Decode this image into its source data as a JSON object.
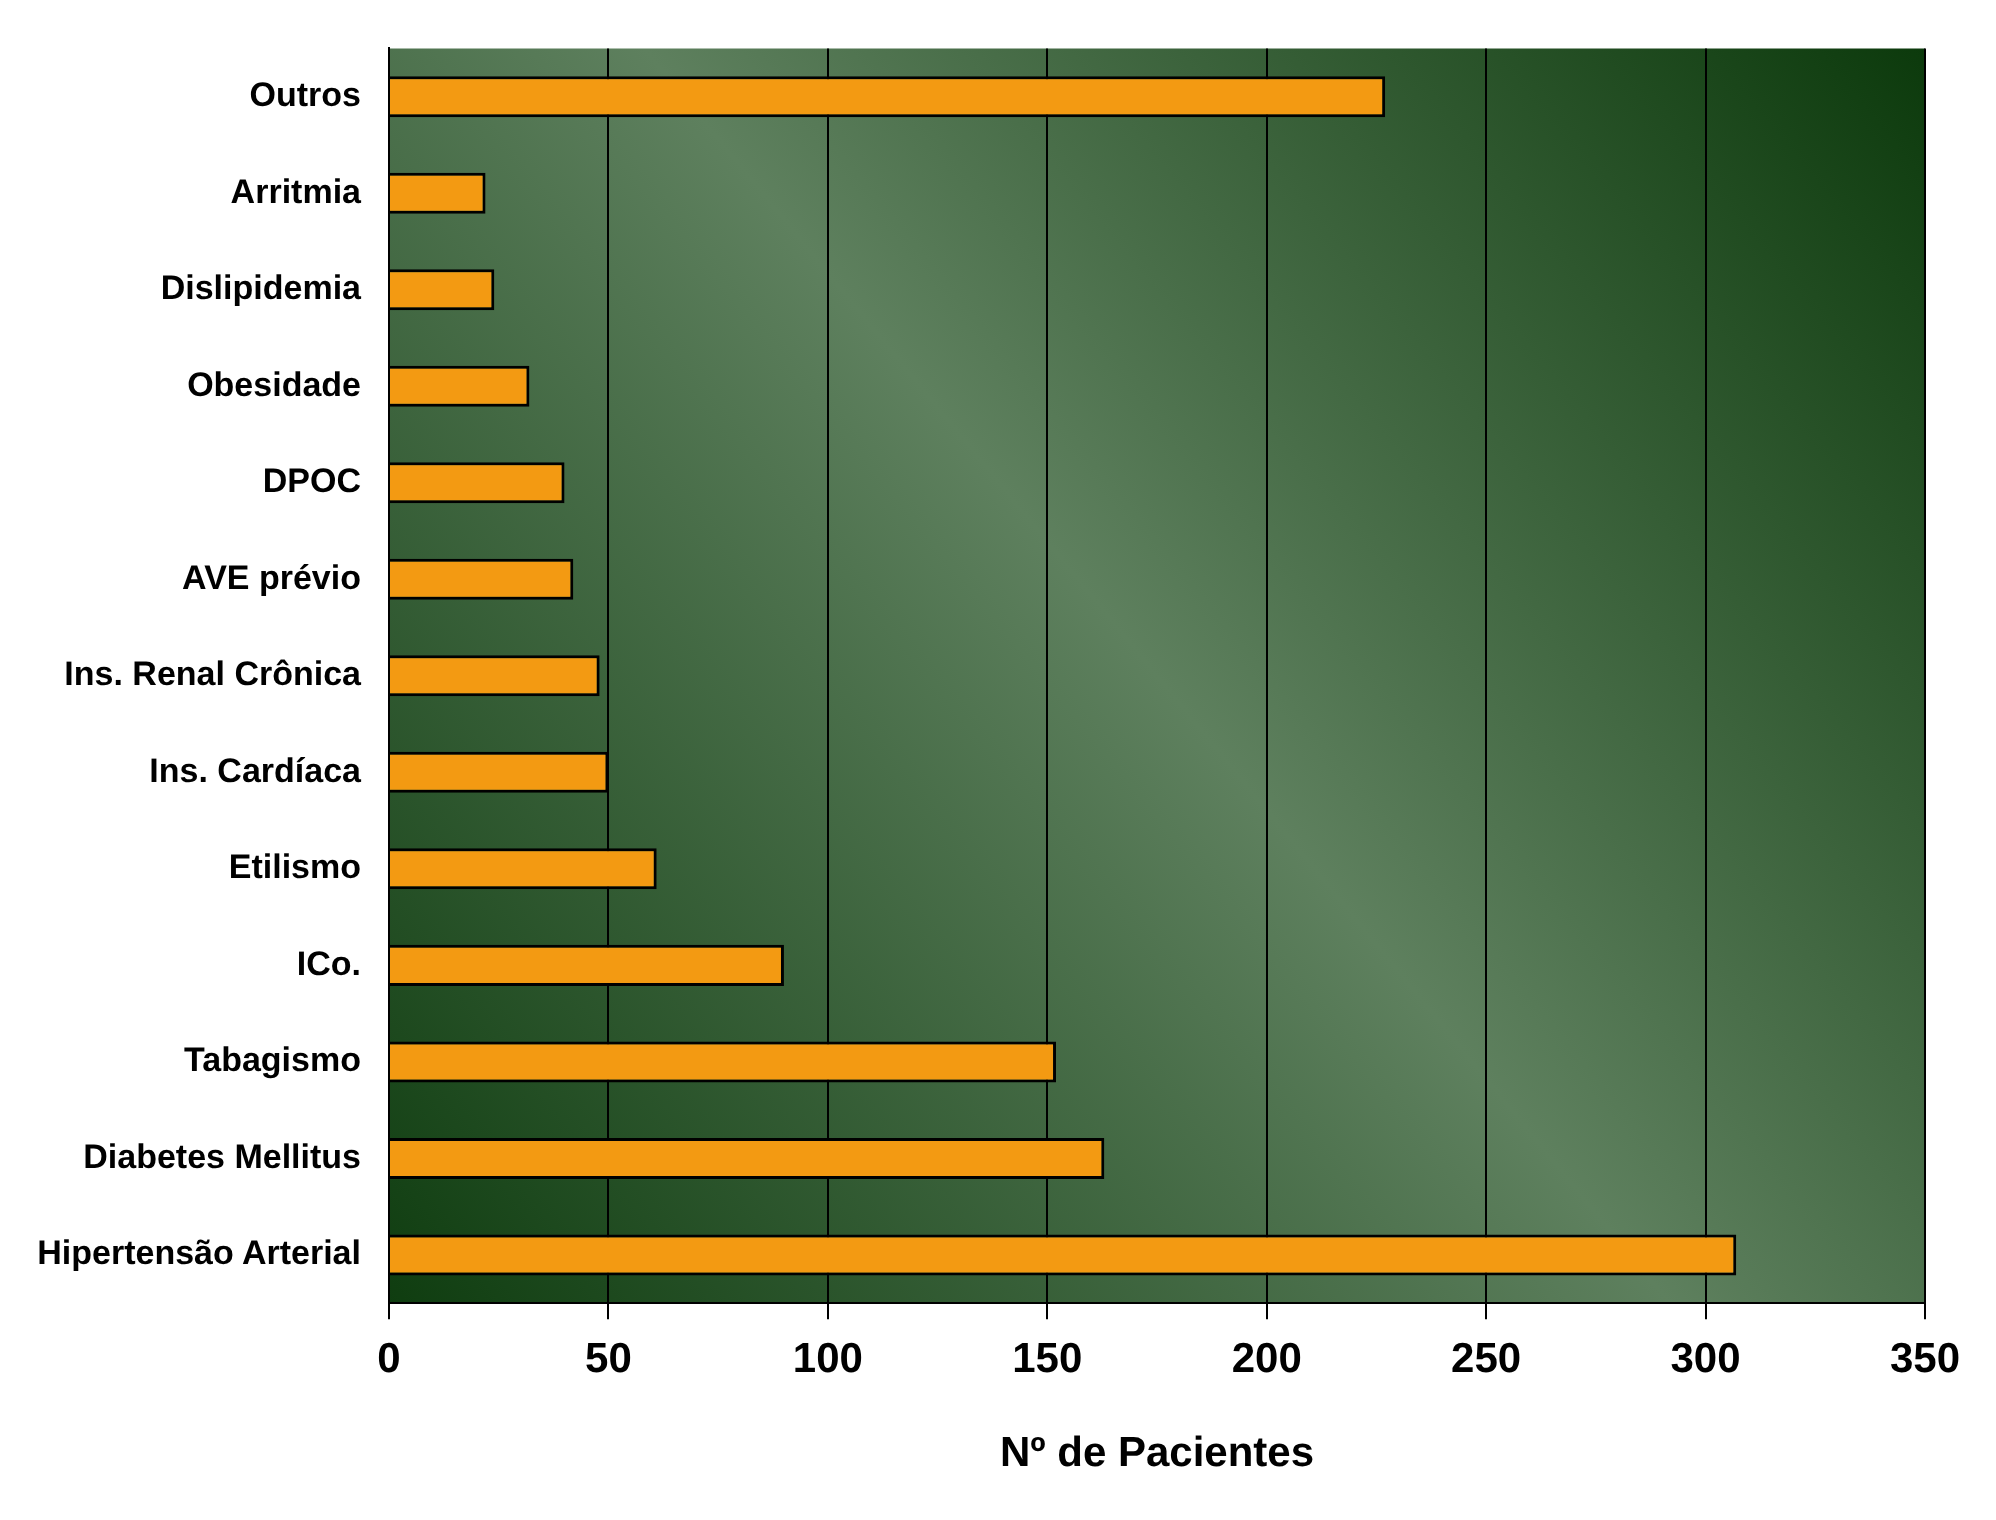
{
  "chart_data": {
    "type": "bar",
    "orientation": "horizontal",
    "xlabel": "Nº de Pacientes",
    "categories": [
      "Outros",
      "Arritmia",
      "Dislipidemia",
      "Obesidade",
      "DPOC",
      "AVE prévio",
      "Ins. Renal Crônica",
      "Ins. Cardíaca",
      "Etilismo",
      "ICo.",
      "Tabagismo",
      "Diabetes Mellitus",
      "Hipertensão Arterial"
    ],
    "values": [
      227,
      22,
      24,
      32,
      40,
      42,
      48,
      50,
      61,
      90,
      152,
      163,
      307
    ],
    "color": "#f39a12",
    "xlim": [
      0,
      350
    ],
    "xticks": [
      0,
      50,
      100,
      150,
      200,
      250,
      300,
      350
    ],
    "grid": "x"
  }
}
